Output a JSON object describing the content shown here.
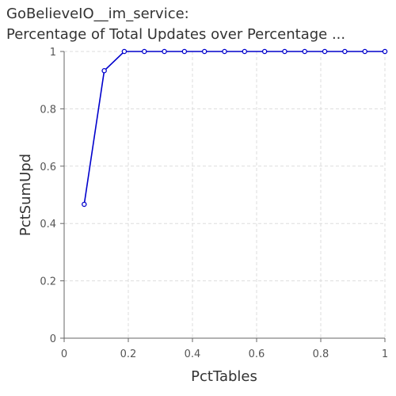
{
  "chart_data": {
    "type": "line",
    "title_line1": "GoBelieveIO__im_service:",
    "title_line2": "Percentage of Total Updates over Percentage ...",
    "xlabel": "PctTables",
    "ylabel": "PctSumUpd",
    "xlim": [
      0,
      1
    ],
    "ylim": [
      0,
      1
    ],
    "xticks": [
      "0",
      "0.2",
      "0.4",
      "0.6",
      "0.8",
      "1"
    ],
    "yticks": [
      "0",
      "0.2",
      "0.4",
      "0.6",
      "0.8",
      "1"
    ],
    "grid": true,
    "series": [
      {
        "color": "#0000cc",
        "x": [
          0.0625,
          0.125,
          0.1875,
          0.25,
          0.3125,
          0.375,
          0.4375,
          0.5,
          0.5625,
          0.625,
          0.6875,
          0.75,
          0.8125,
          0.875,
          0.9375,
          1.0
        ],
        "y": [
          0.467,
          0.933,
          1,
          1,
          1,
          1,
          1,
          1,
          1,
          1,
          1,
          1,
          1,
          1,
          1,
          1
        ]
      }
    ]
  }
}
